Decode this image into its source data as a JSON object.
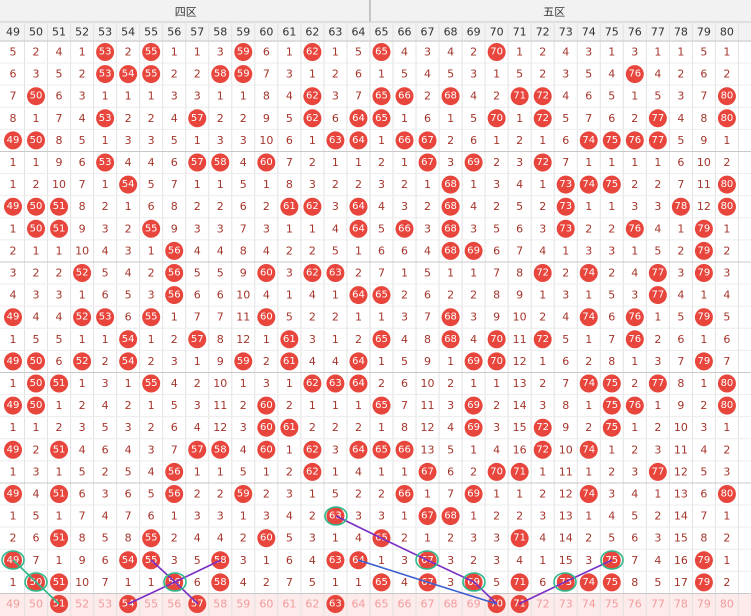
{
  "zones": [
    {
      "label": "四区",
      "columns": [
        49,
        50,
        51,
        52,
        53,
        54,
        55,
        56,
        57,
        58,
        59,
        60,
        61,
        62,
        63,
        64
      ]
    },
    {
      "label": "五区",
      "columns": [
        65,
        66,
        67,
        68,
        69,
        70,
        71,
        72,
        73,
        74,
        75,
        76,
        77,
        78,
        79,
        80
      ]
    }
  ],
  "hit_color": "#e8453c",
  "rows": [
    [
      5,
      2,
      4,
      1,
      53,
      2,
      55,
      1,
      1,
      3,
      59,
      6,
      1,
      62,
      1,
      5,
      65,
      4,
      3,
      4,
      2,
      70,
      1,
      2,
      4,
      3,
      1,
      3,
      1,
      1,
      5,
      1
    ],
    [
      6,
      3,
      5,
      2,
      53,
      54,
      55,
      2,
      2,
      58,
      59,
      7,
      3,
      1,
      2,
      6,
      1,
      5,
      4,
      5,
      3,
      1,
      5,
      2,
      3,
      5,
      4,
      76,
      4,
      2,
      6,
      2
    ],
    [
      7,
      50,
      6,
      3,
      1,
      1,
      1,
      3,
      3,
      1,
      1,
      8,
      4,
      62,
      3,
      7,
      65,
      66,
      2,
      68,
      4,
      2,
      71,
      72,
      4,
      6,
      5,
      1,
      5,
      3,
      7,
      80
    ],
    [
      8,
      1,
      7,
      4,
      53,
      2,
      2,
      4,
      57,
      2,
      2,
      9,
      5,
      62,
      6,
      64,
      65,
      1,
      6,
      1,
      5,
      70,
      1,
      72,
      5,
      7,
      6,
      2,
      77,
      4,
      8,
      80
    ],
    [
      49,
      50,
      8,
      5,
      1,
      3,
      3,
      5,
      1,
      3,
      3,
      10,
      6,
      1,
      63,
      64,
      1,
      66,
      67,
      2,
      6,
      1,
      2,
      1,
      6,
      74,
      75,
      76,
      77,
      5,
      9,
      1
    ],
    [
      1,
      1,
      9,
      6,
      53,
      4,
      4,
      6,
      57,
      58,
      4,
      60,
      7,
      2,
      1,
      1,
      2,
      1,
      67,
      3,
      69,
      2,
      3,
      72,
      7,
      1,
      1,
      1,
      1,
      6,
      10,
      2
    ],
    [
      1,
      2,
      10,
      7,
      1,
      54,
      5,
      7,
      1,
      1,
      5,
      1,
      8,
      3,
      2,
      2,
      3,
      2,
      1,
      68,
      1,
      3,
      4,
      1,
      73,
      74,
      75,
      2,
      2,
      7,
      11,
      80
    ],
    [
      49,
      50,
      51,
      8,
      2,
      1,
      6,
      8,
      2,
      2,
      6,
      2,
      61,
      62,
      3,
      64,
      4,
      3,
      2,
      68,
      4,
      2,
      5,
      2,
      73,
      1,
      1,
      3,
      3,
      78,
      12,
      80
    ],
    [
      1,
      50,
      51,
      9,
      3,
      2,
      55,
      9,
      3,
      3,
      7,
      3,
      1,
      1,
      4,
      64,
      5,
      66,
      3,
      68,
      3,
      5,
      6,
      3,
      73,
      2,
      2,
      76,
      4,
      1,
      79,
      1
    ],
    [
      2,
      1,
      1,
      10,
      4,
      3,
      1,
      56,
      4,
      4,
      8,
      4,
      2,
      2,
      5,
      1,
      6,
      6,
      4,
      68,
      69,
      6,
      7,
      4,
      1,
      3,
      3,
      1,
      5,
      2,
      79,
      2
    ],
    [
      3,
      2,
      2,
      52,
      5,
      4,
      2,
      56,
      5,
      5,
      9,
      60,
      3,
      62,
      63,
      2,
      7,
      1,
      5,
      1,
      1,
      7,
      8,
      72,
      2,
      74,
      2,
      4,
      77,
      3,
      79,
      3
    ],
    [
      4,
      3,
      3,
      1,
      6,
      5,
      3,
      56,
      6,
      6,
      10,
      4,
      1,
      4,
      1,
      64,
      65,
      2,
      6,
      2,
      2,
      8,
      9,
      1,
      3,
      1,
      5,
      3,
      77,
      4,
      1,
      4
    ],
    [
      49,
      4,
      4,
      52,
      53,
      6,
      55,
      1,
      7,
      7,
      11,
      60,
      5,
      2,
      2,
      1,
      1,
      3,
      7,
      68,
      3,
      9,
      10,
      2,
      4,
      74,
      6,
      76,
      1,
      5,
      79,
      5
    ],
    [
      1,
      5,
      5,
      1,
      1,
      54,
      1,
      2,
      57,
      8,
      12,
      1,
      61,
      3,
      1,
      2,
      65,
      4,
      8,
      68,
      4,
      70,
      11,
      72,
      5,
      1,
      7,
      76,
      2,
      6,
      1,
      6
    ],
    [
      49,
      50,
      6,
      52,
      2,
      54,
      2,
      3,
      1,
      9,
      59,
      2,
      61,
      4,
      4,
      64,
      1,
      5,
      9,
      1,
      69,
      70,
      12,
      1,
      6,
      2,
      8,
      1,
      3,
      7,
      79,
      7
    ],
    [
      1,
      50,
      51,
      1,
      3,
      1,
      55,
      4,
      2,
      10,
      1,
      3,
      1,
      62,
      63,
      64,
      2,
      6,
      10,
      2,
      1,
      1,
      13,
      2,
      7,
      74,
      75,
      2,
      77,
      8,
      1,
      80
    ],
    [
      49,
      50,
      1,
      2,
      4,
      2,
      1,
      5,
      3,
      11,
      2,
      60,
      2,
      1,
      1,
      1,
      65,
      7,
      11,
      3,
      69,
      2,
      14,
      3,
      8,
      1,
      75,
      76,
      1,
      9,
      2,
      80
    ],
    [
      1,
      1,
      2,
      3,
      5,
      3,
      2,
      6,
      4,
      12,
      3,
      60,
      61,
      2,
      2,
      2,
      1,
      8,
      12,
      4,
      69,
      3,
      15,
      72,
      9,
      2,
      75,
      1,
      2,
      10,
      3,
      1
    ],
    [
      49,
      2,
      51,
      4,
      6,
      4,
      3,
      7,
      57,
      58,
      4,
      60,
      1,
      62,
      3,
      64,
      65,
      66,
      13,
      5,
      1,
      4,
      16,
      72,
      10,
      74,
      1,
      2,
      3,
      11,
      4,
      2
    ],
    [
      1,
      3,
      1,
      5,
      2,
      5,
      4,
      56,
      1,
      1,
      5,
      1,
      2,
      62,
      1,
      4,
      1,
      1,
      67,
      6,
      2,
      70,
      71,
      1,
      11,
      1,
      2,
      3,
      77,
      12,
      5,
      3
    ],
    [
      49,
      4,
      51,
      6,
      3,
      6,
      5,
      56,
      2,
      2,
      59,
      2,
      3,
      1,
      5,
      2,
      2,
      66,
      1,
      7,
      69,
      1,
      1,
      2,
      12,
      74,
      3,
      4,
      1,
      13,
      6,
      80
    ],
    [
      1,
      5,
      1,
      7,
      4,
      7,
      6,
      1,
      3,
      3,
      1,
      3,
      4,
      2,
      63,
      3,
      3,
      1,
      67,
      68,
      1,
      2,
      2,
      3,
      13,
      1,
      4,
      5,
      2,
      14,
      7,
      1
    ],
    [
      2,
      6,
      51,
      8,
      5,
      8,
      55,
      2,
      4,
      4,
      2,
      60,
      5,
      3,
      1,
      4,
      65,
      2,
      1,
      2,
      3,
      3,
      71,
      4,
      14,
      2,
      5,
      6,
      3,
      15,
      8,
      2
    ],
    [
      49,
      7,
      1,
      9,
      6,
      54,
      55,
      3,
      5,
      58,
      3,
      1,
      6,
      4,
      63,
      64,
      1,
      3,
      67,
      3,
      2,
      3,
      4,
      1,
      15,
      3,
      75,
      7,
      4,
      16,
      79,
      1
    ],
    [
      1,
      50,
      51,
      10,
      7,
      1,
      1,
      56,
      6,
      58,
      4,
      2,
      7,
      5,
      1,
      1,
      65,
      4,
      67,
      3,
      69,
      5,
      71,
      6,
      73,
      74,
      75,
      8,
      5,
      17,
      79,
      2
    ]
  ],
  "current": [
    51,
    54,
    57,
    63,
    70,
    71
  ]
}
